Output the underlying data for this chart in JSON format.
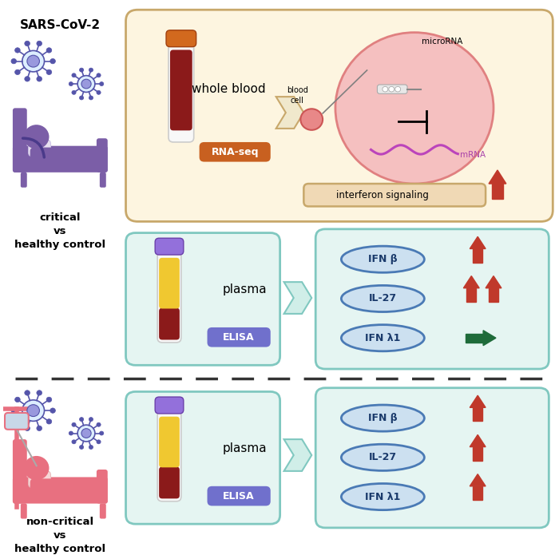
{
  "bg_color": "#ffffff",
  "top_section_bg": "#fdf5e0",
  "top_section_border": "#c8a86b",
  "plasma_section_bg": "#e5f5f2",
  "plasma_section_border": "#80c8c0",
  "sars_text": "SARS-CoV-2",
  "whole_blood_text": "whole blood",
  "rna_seq_text": "RNA-seq",
  "rna_seq_bg": "#c86020",
  "plasma_text": "plasma",
  "elisa_text": "ELISA",
  "elisa_bg": "#7070cc",
  "interferon_text": "interferon signaling",
  "interferon_bg": "#f0d9b5",
  "interferon_border": "#c8a86b",
  "microRNA_text": "microRNA",
  "mRNA_text": "mRNA",
  "blood_cell_text": "blood\ncell",
  "critical_label": "critical\nvs\nhealthy control",
  "noncritical_label": "non-critical\nvs\nhealthy control",
  "ifn_labels": [
    "IFN β",
    "IL-27",
    "IFN λ1"
  ],
  "critical_person_color": "#7b5ea7",
  "noncritical_person_color": "#e87080",
  "arrow_red": "#c0392b",
  "arrow_green": "#1e6b3a",
  "oval_bg": "#cce0f0",
  "oval_border": "#4a7ab5",
  "oval_text_color": "#1a3a6b",
  "virus_color": "#5555aa",
  "virus_fill": "#ddeeff"
}
